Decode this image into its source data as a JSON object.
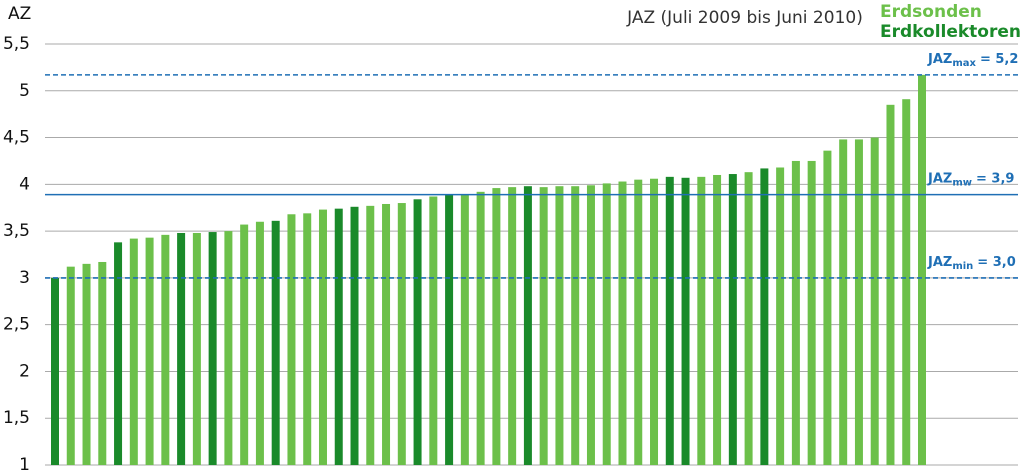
{
  "chart_data": {
    "type": "bar",
    "title": "JAZ (Juli 2009 bis Juni 2010)",
    "y_label": "AZ",
    "series": [
      {
        "name": "Erdsonden",
        "color": "#6cc04a",
        "values": [
          null,
          3.12,
          3.15,
          3.17,
          null,
          3.42,
          3.43,
          3.46,
          null,
          3.48,
          null,
          3.5,
          3.57,
          3.6,
          null,
          3.68,
          3.69,
          3.73,
          null,
          null,
          3.77,
          3.79,
          3.8,
          null,
          3.87,
          null,
          3.89,
          3.92,
          3.96,
          3.97,
          null,
          3.97,
          3.98,
          3.98,
          3.99,
          4.01,
          4.03,
          4.05,
          4.06,
          null,
          null,
          4.08,
          4.1,
          null,
          4.13,
          null,
          4.18,
          4.25,
          4.25,
          4.36,
          4.48,
          4.48,
          4.5,
          4.85,
          4.91,
          5.17
        ]
      },
      {
        "name": "Erdkollektoren",
        "color": "#1a8a2a",
        "values": [
          3.0,
          null,
          null,
          null,
          3.38,
          null,
          null,
          null,
          3.48,
          null,
          3.49,
          null,
          null,
          null,
          3.61,
          null,
          null,
          null,
          3.74,
          3.76,
          null,
          null,
          null,
          3.84,
          null,
          3.89,
          null,
          null,
          null,
          null,
          3.98,
          null,
          null,
          null,
          null,
          null,
          null,
          null,
          null,
          4.08,
          4.07,
          null,
          null,
          4.11,
          null,
          4.17,
          null,
          null,
          null,
          null,
          null,
          null,
          null,
          null,
          null,
          null
        ]
      }
    ],
    "ylim": [
      1,
      5.5
    ],
    "yticks": [
      {
        "value": 1,
        "label": "1"
      },
      {
        "value": 1.5,
        "label": "1,5"
      },
      {
        "value": 2,
        "label": "2"
      },
      {
        "value": 2.5,
        "label": "2,5"
      },
      {
        "value": 3,
        "label": "3"
      },
      {
        "value": 3.5,
        "label": "3,5"
      },
      {
        "value": 4,
        "label": "4"
      },
      {
        "value": 4.5,
        "label": "4,5"
      },
      {
        "value": 5,
        "label": "5"
      },
      {
        "value": 5.5,
        "label": "5,5"
      }
    ],
    "grid": true,
    "reference_lines": [
      {
        "label": "JAZ",
        "sub": "max",
        "text": "= 5,2",
        "value": 5.17,
        "style": "dashed",
        "color": "#1f6fb5"
      },
      {
        "label": "JAZ",
        "sub": "mw",
        "text": "= 3,9",
        "value": 3.89,
        "style": "solid",
        "color": "#1f6fb5"
      },
      {
        "label": "JAZ",
        "sub": "min",
        "text": "= 3,0",
        "value": 3.0,
        "style": "dashed",
        "color": "#1f6fb5"
      }
    ]
  }
}
